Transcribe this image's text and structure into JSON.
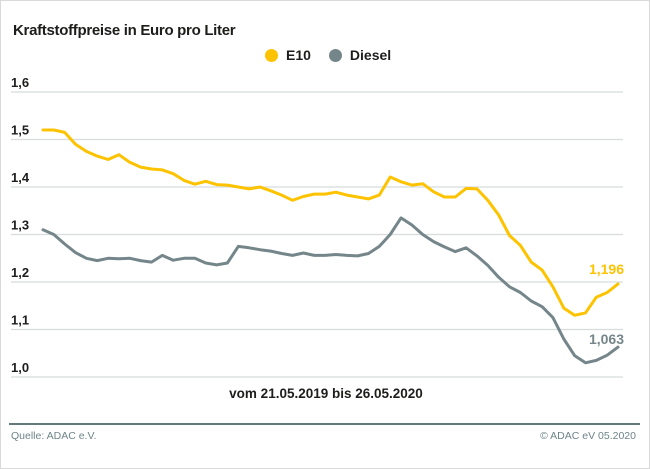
{
  "header": {
    "title": "Kraftstoffpreise in Euro pro Liter"
  },
  "chart_data": {
    "type": "line",
    "title": "Kraftstoffpreise in Euro pro Liter",
    "x_range_label": "vom 21.05.2019 bis 26.05.2020",
    "x_start": "21.05.2019",
    "x_end": "26.05.2020",
    "x_unit": "week",
    "ylabel": "Euro pro Liter",
    "ylim": [
      1.0,
      1.6
    ],
    "grid": true,
    "legend_position": "top-center",
    "yticks": [
      {
        "value": 1.6,
        "label": "1,6"
      },
      {
        "value": 1.5,
        "label": "1,5"
      },
      {
        "value": 1.4,
        "label": "1,4"
      },
      {
        "value": 1.3,
        "label": "1,3"
      },
      {
        "value": 1.2,
        "label": "1,2"
      },
      {
        "value": 1.1,
        "label": "1,1"
      },
      {
        "value": 1.0,
        "label": "1,0"
      }
    ],
    "series": [
      {
        "name": "E10",
        "color": "#fdc300",
        "end_label": "1,196",
        "values": [
          1.52,
          1.52,
          1.515,
          1.49,
          1.475,
          1.465,
          1.458,
          1.468,
          1.452,
          1.442,
          1.438,
          1.436,
          1.428,
          1.414,
          1.406,
          1.412,
          1.405,
          1.404,
          1.4,
          1.396,
          1.4,
          1.392,
          1.383,
          1.372,
          1.38,
          1.385,
          1.385,
          1.389,
          1.383,
          1.379,
          1.375,
          1.383,
          1.421,
          1.411,
          1.404,
          1.407,
          1.39,
          1.379,
          1.379,
          1.397,
          1.396,
          1.372,
          1.341,
          1.298,
          1.277,
          1.242,
          1.225,
          1.19,
          1.145,
          1.13,
          1.135,
          1.168,
          1.178,
          1.196
        ]
      },
      {
        "name": "Diesel",
        "color": "#75868a",
        "end_label": "1,063",
        "values": [
          1.31,
          1.3,
          1.28,
          1.262,
          1.25,
          1.245,
          1.25,
          1.249,
          1.25,
          1.245,
          1.242,
          1.256,
          1.246,
          1.25,
          1.25,
          1.24,
          1.236,
          1.24,
          1.275,
          1.272,
          1.268,
          1.265,
          1.26,
          1.256,
          1.261,
          1.256,
          1.256,
          1.258,
          1.256,
          1.255,
          1.26,
          1.275,
          1.3,
          1.335,
          1.32,
          1.3,
          1.285,
          1.274,
          1.264,
          1.272,
          1.255,
          1.235,
          1.21,
          1.19,
          1.178,
          1.16,
          1.148,
          1.125,
          1.08,
          1.045,
          1.03,
          1.035,
          1.046,
          1.063
        ]
      }
    ],
    "colors": {
      "grid": "#d7dcdc",
      "tick_text": "#1d1d1b"
    }
  },
  "footer": {
    "source": "Quelle: ADAC e.V.",
    "copyright": "© ADAC eV 05.2020"
  }
}
